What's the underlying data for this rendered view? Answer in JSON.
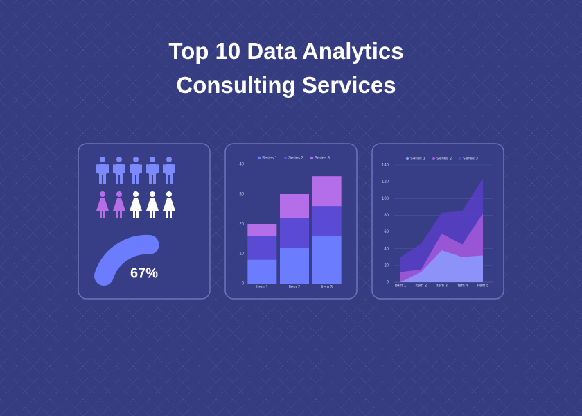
{
  "title": [
    "Top 10 Data Analytics",
    "Consulting Services"
  ],
  "gauge": {
    "value": 67,
    "value_label": "67%",
    "color": "#6b7cff"
  },
  "chart_data": [
    {
      "type": "bar",
      "stacked": true,
      "categories": [
        "Item 1",
        "Item 2",
        "Item 3"
      ],
      "series": [
        {
          "name": "Series 1",
          "color": "#6b7cff",
          "values": [
            8,
            12,
            16
          ]
        },
        {
          "name": "Series 2",
          "color": "#5b4bd4",
          "values": [
            8,
            10,
            10
          ]
        },
        {
          "name": "Series 3",
          "color": "#b36ee8",
          "values": [
            4,
            8,
            10
          ]
        }
      ],
      "ylim": [
        0,
        40
      ],
      "yticks": [
        0,
        10,
        20,
        30,
        40
      ],
      "grid": false
    },
    {
      "type": "area",
      "categories": [
        "Item 1",
        "Item 2",
        "Item 3",
        "Item 4",
        "Item 5"
      ],
      "series": [
        {
          "name": "Series 1",
          "color": "#8b9cff",
          "values": [
            0,
            12,
            38,
            30,
            32
          ]
        },
        {
          "name": "Series 2",
          "color": "#a45ad8",
          "values": [
            12,
            15,
            58,
            45,
            82
          ]
        },
        {
          "name": "Series 3",
          "color": "#5840c8",
          "values": [
            30,
            46,
            83,
            85,
            124
          ]
        }
      ],
      "ylim": [
        0,
        140
      ],
      "yticks": [
        0,
        20,
        40,
        60,
        80,
        100,
        120,
        140
      ],
      "grid": true
    }
  ]
}
